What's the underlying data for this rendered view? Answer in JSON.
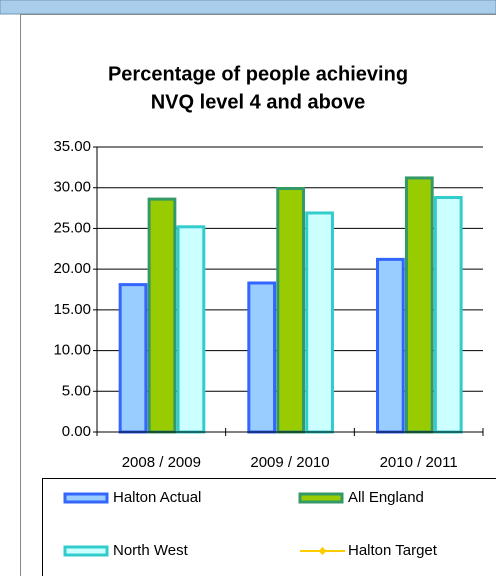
{
  "chart_data": {
    "type": "bar",
    "title": "Percentage of people achieving NVQ level 4 and above",
    "title_lines": [
      "Percentage of people achieving",
      "NVQ level 4 and above"
    ],
    "categories": [
      "2008 / 2009",
      "2009 / 2010",
      "2010 / 2011"
    ],
    "series": [
      {
        "name": "Halton Actual",
        "color": "#99ccff",
        "edge": "#3366ff",
        "values": [
          18.1,
          18.3,
          21.2
        ]
      },
      {
        "name": "All England",
        "color": "#99cc00",
        "edge": "#339966",
        "values": [
          28.6,
          29.9,
          31.2
        ]
      },
      {
        "name": "North West",
        "color": "#ccffff",
        "edge": "#33cccc",
        "values": [
          25.2,
          26.9,
          28.8
        ]
      },
      {
        "name": "Halton Target",
        "color": "#ffcc00",
        "type": "line",
        "values": [
          null,
          null,
          null
        ]
      }
    ],
    "ylim": [
      0,
      35
    ],
    "yticks": [
      {
        "value": 0,
        "label": "0.00"
      },
      {
        "value": 5,
        "label": "5.00"
      },
      {
        "value": 10,
        "label": "10.00"
      },
      {
        "value": 15,
        "label": "15.00"
      },
      {
        "value": 20,
        "label": "20.00"
      },
      {
        "value": 25,
        "label": "25.00"
      },
      {
        "value": 30,
        "label": "30.00"
      },
      {
        "value": 35,
        "label": "35.00"
      }
    ],
    "grid": true
  }
}
